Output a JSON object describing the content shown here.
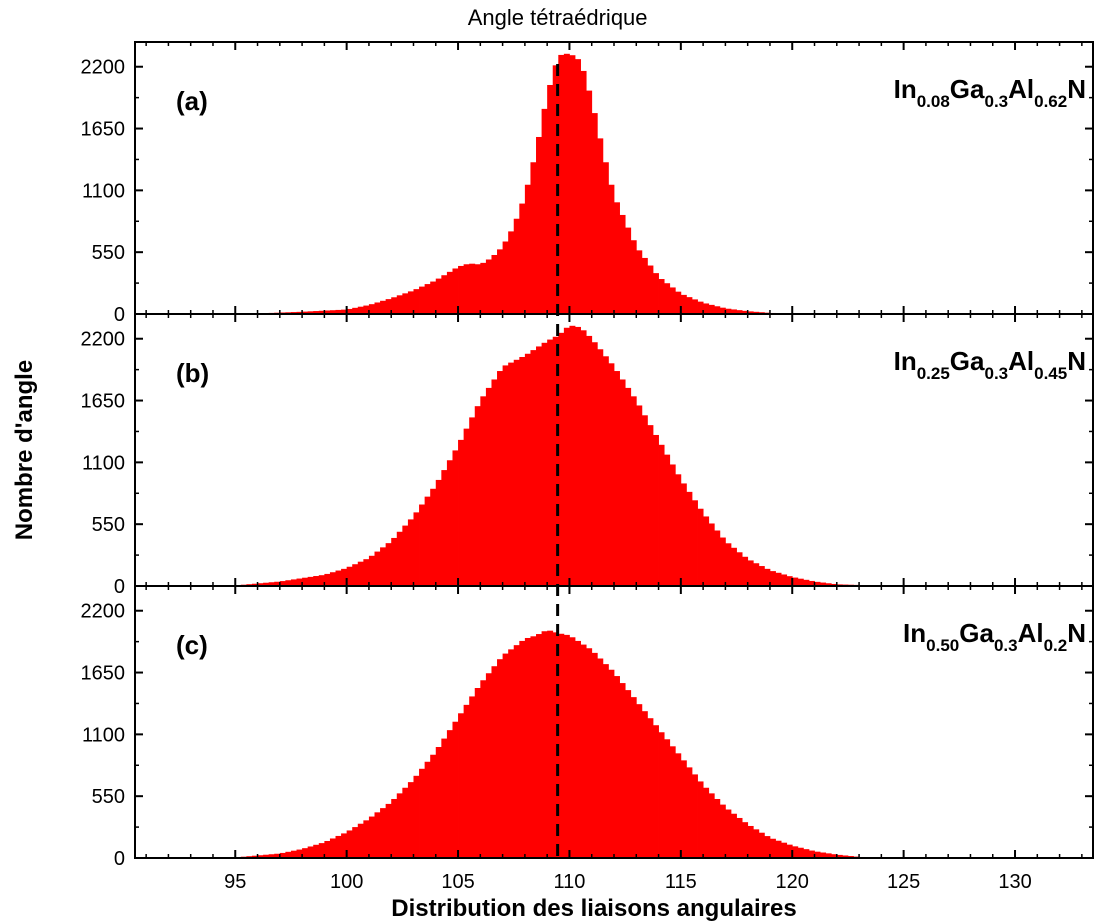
{
  "colors": {
    "bars": "#ff0000",
    "axis": "#000000",
    "reference_line": "#000000"
  },
  "chart_data": {
    "type": "bar",
    "title": "Angle tétraédrique",
    "xlabel": "Distribution des liaisons angulaires",
    "ylabel": "Nombre d'angle",
    "xlim": [
      90.5,
      133.5
    ],
    "x_ticks": [
      "95",
      "100",
      "105",
      "110",
      "115",
      "120",
      "125",
      "130"
    ],
    "y_ticks": [
      "0",
      "550",
      "1100",
      "1650",
      "2200"
    ],
    "ylim": [
      0,
      2420
    ],
    "reference_line_x": 109.47,
    "bin_width": 0.25,
    "panels": [
      {
        "tag": "(a)",
        "formula": [
          {
            "text": "In",
            "sub": false
          },
          {
            "text": "0.08",
            "sub": true
          },
          {
            "text": "Ga",
            "sub": false
          },
          {
            "text": "0.3",
            "sub": true
          },
          {
            "text": "Al",
            "sub": false
          },
          {
            "text": "0.62",
            "sub": true
          },
          {
            "text": "N",
            "sub": false
          }
        ],
        "x": [
          96,
          98,
          100,
          101,
          102,
          103,
          104,
          105,
          105.5,
          106,
          106.5,
          107,
          107.5,
          108,
          108.5,
          109,
          109.5,
          110,
          110.5,
          111,
          111.5,
          112,
          113,
          114,
          115,
          116,
          117,
          118,
          119,
          120
        ],
        "y": [
          5,
          20,
          40,
          80,
          140,
          210,
          300,
          420,
          450,
          440,
          500,
          600,
          780,
          1050,
          1450,
          1950,
          2300,
          2320,
          2250,
          1900,
          1450,
          1050,
          600,
          330,
          180,
          100,
          50,
          25,
          10,
          3
        ]
      },
      {
        "tag": "(b)",
        "formula": [
          {
            "text": "In",
            "sub": false
          },
          {
            "text": "0.25",
            "sub": true
          },
          {
            "text": "Ga",
            "sub": false
          },
          {
            "text": "0.3",
            "sub": true
          },
          {
            "text": "Al",
            "sub": false
          },
          {
            "text": "0.45",
            "sub": true
          },
          {
            "text": "N",
            "sub": false
          }
        ],
        "x": [
          95,
          97,
          99,
          100,
          101,
          102,
          103,
          104,
          105,
          106,
          107,
          108,
          109,
          109.5,
          110,
          110.5,
          111,
          112,
          113,
          114,
          115,
          116,
          117,
          118,
          119,
          120,
          121,
          122,
          124
        ],
        "y": [
          5,
          40,
          100,
          160,
          250,
          400,
          620,
          900,
          1250,
          1650,
          1950,
          2050,
          2180,
          2230,
          2320,
          2300,
          2200,
          1950,
          1650,
          1300,
          950,
          650,
          400,
          240,
          140,
          80,
          40,
          15,
          3
        ]
      },
      {
        "tag": "(c)",
        "formula": [
          {
            "text": "In",
            "sub": false
          },
          {
            "text": "0.50",
            "sub": true
          },
          {
            "text": "Ga",
            "sub": false
          },
          {
            "text": "0.3",
            "sub": true
          },
          {
            "text": "Al",
            "sub": false
          },
          {
            "text": "0.2",
            "sub": true
          },
          {
            "text": "N",
            "sub": false
          }
        ],
        "x": [
          95,
          97,
          98,
          99,
          100,
          101,
          102,
          103,
          104,
          105,
          106,
          107,
          108,
          108.5,
          109,
          109.5,
          110,
          111,
          112,
          113,
          114,
          115,
          116,
          117,
          118,
          119,
          120,
          121,
          122,
          123,
          124
        ],
        "y": [
          5,
          40,
          80,
          140,
          230,
          350,
          500,
          700,
          950,
          1250,
          1550,
          1800,
          1950,
          1980,
          2030,
          2000,
          1980,
          1850,
          1650,
          1400,
          1150,
          900,
          650,
          450,
          300,
          180,
          110,
          60,
          30,
          10,
          2
        ]
      }
    ]
  }
}
